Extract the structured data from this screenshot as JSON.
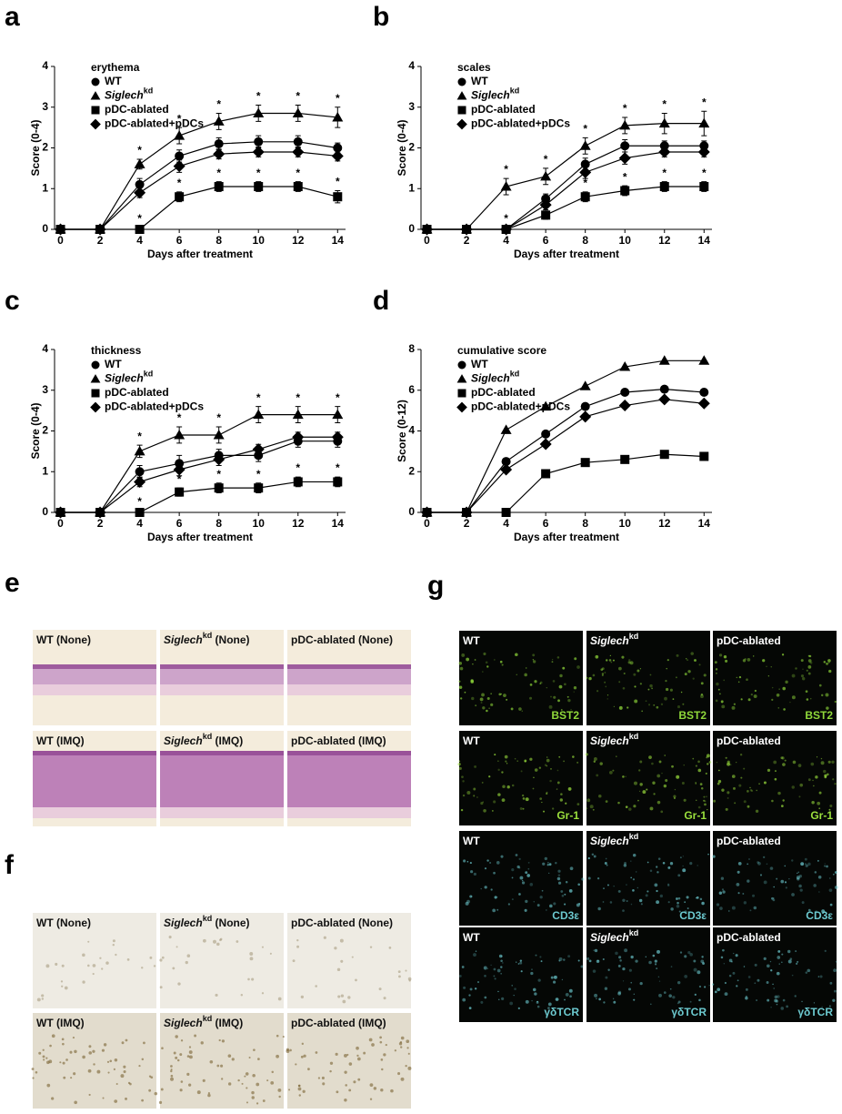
{
  "chart_data": [
    {
      "type": "line",
      "label": "a",
      "title": "erythema",
      "ylabel": "Score (0-4)",
      "xlabel": "Days after treatment",
      "x": [
        0,
        2,
        4,
        6,
        8,
        10,
        12,
        14
      ],
      "xlim": [
        -0.3,
        14.4
      ],
      "xticks": [
        0,
        2,
        4,
        6,
        8,
        10,
        12,
        14
      ],
      "ylim": [
        0,
        4
      ],
      "yticks": [
        0,
        1,
        2,
        3,
        4
      ],
      "series": [
        {
          "name": "WT",
          "marker": "circle",
          "color": "#000000",
          "values": [
            0,
            0,
            1.1,
            1.8,
            2.1,
            2.15,
            2.15,
            2.0
          ],
          "errors": [
            0.05,
            0.05,
            0.15,
            0.15,
            0.15,
            0.15,
            0.15,
            0.12
          ],
          "annotations": [
            null,
            null,
            null,
            null,
            null,
            null,
            null,
            null
          ]
        },
        {
          "name": "Siglech",
          "name_sup": "kd",
          "marker": "triangle",
          "color": "#000000",
          "values": [
            0,
            0,
            1.6,
            2.3,
            2.65,
            2.85,
            2.85,
            2.75
          ],
          "errors": [
            0.05,
            0.05,
            0.12,
            0.2,
            0.2,
            0.2,
            0.2,
            0.25
          ],
          "annotations": [
            null,
            null,
            "*",
            "*",
            "*",
            "*",
            "*",
            "*"
          ]
        },
        {
          "name": "pDC-ablated",
          "marker": "square",
          "color": "#000000",
          "values": [
            0,
            0,
            0,
            0.8,
            1.05,
            1.05,
            1.05,
            0.8
          ],
          "errors": [
            0.05,
            0.05,
            0.05,
            0.12,
            0.12,
            0.12,
            0.12,
            0.15
          ],
          "annotations": [
            null,
            null,
            "*",
            "*",
            "*",
            "*",
            "*",
            "*"
          ]
        },
        {
          "name": "pDC-ablated+pDCs",
          "marker": "diamond",
          "color": "#000000",
          "values": [
            0,
            0,
            0.9,
            1.55,
            1.85,
            1.9,
            1.9,
            1.8
          ],
          "errors": [
            0.05,
            0.05,
            0.12,
            0.15,
            0.12,
            0.12,
            0.12,
            0.12
          ],
          "annotations": [
            null,
            null,
            null,
            null,
            null,
            null,
            null,
            null
          ]
        }
      ]
    },
    {
      "type": "line",
      "label": "b",
      "title": "scales",
      "ylabel": "Score (0-4)",
      "xlabel": "Days after treatment",
      "x": [
        0,
        2,
        4,
        6,
        8,
        10,
        12,
        14
      ],
      "xlim": [
        -0.3,
        14.4
      ],
      "xticks": [
        0,
        2,
        4,
        6,
        8,
        10,
        12,
        14
      ],
      "ylim": [
        0,
        4
      ],
      "yticks": [
        0,
        1,
        2,
        3,
        4
      ],
      "series": [
        {
          "name": "WT",
          "marker": "circle",
          "color": "#000000",
          "values": [
            0,
            0,
            0,
            0.75,
            1.6,
            2.05,
            2.05,
            2.05
          ],
          "errors": [
            0.05,
            0.05,
            0.05,
            0.12,
            0.15,
            0.15,
            0.12,
            0.12
          ],
          "annotations": [
            null,
            null,
            null,
            null,
            null,
            null,
            null,
            null
          ]
        },
        {
          "name": "Siglech",
          "name_sup": "kd",
          "marker": "triangle",
          "color": "#000000",
          "values": [
            0,
            0,
            1.05,
            1.3,
            2.05,
            2.55,
            2.6,
            2.6
          ],
          "errors": [
            0.05,
            0.05,
            0.2,
            0.2,
            0.2,
            0.2,
            0.25,
            0.3
          ],
          "annotations": [
            null,
            null,
            "*",
            "*",
            "*",
            "*",
            "*",
            "*"
          ]
        },
        {
          "name": "pDC-ablated",
          "marker": "square",
          "color": "#000000",
          "values": [
            0,
            0,
            0,
            0.35,
            0.8,
            0.95,
            1.05,
            1.05
          ],
          "errors": [
            0.05,
            0.05,
            0.05,
            0.1,
            0.12,
            0.12,
            0.12,
            0.12
          ],
          "annotations": [
            null,
            null,
            "*",
            null,
            "*",
            "*",
            "*",
            "*"
          ]
        },
        {
          "name": "pDC-ablated+pDCs",
          "marker": "diamond",
          "color": "#000000",
          "values": [
            0,
            0,
            0,
            0.6,
            1.4,
            1.75,
            1.9,
            1.9
          ],
          "errors": [
            0.05,
            0.05,
            0.05,
            0.12,
            0.15,
            0.15,
            0.12,
            0.12
          ],
          "annotations": [
            null,
            null,
            null,
            null,
            null,
            null,
            null,
            null
          ]
        }
      ]
    },
    {
      "type": "line",
      "label": "c",
      "title": "thickness",
      "ylabel": "Score (0-4)",
      "xlabel": "Days after treatment",
      "x": [
        0,
        2,
        4,
        6,
        8,
        10,
        12,
        14
      ],
      "xlim": [
        -0.3,
        14.4
      ],
      "xticks": [
        0,
        2,
        4,
        6,
        8,
        10,
        12,
        14
      ],
      "ylim": [
        0,
        4
      ],
      "yticks": [
        0,
        1,
        2,
        3,
        4
      ],
      "series": [
        {
          "name": "WT",
          "marker": "circle",
          "color": "#000000",
          "values": [
            0,
            0,
            1.0,
            1.2,
            1.4,
            1.4,
            1.75,
            1.75
          ],
          "errors": [
            0.05,
            0.05,
            0.15,
            0.2,
            0.15,
            0.15,
            0.15,
            0.15
          ],
          "annotations": [
            null,
            null,
            null,
            null,
            null,
            null,
            null,
            null
          ]
        },
        {
          "name": "Siglech",
          "name_sup": "kd",
          "marker": "triangle",
          "color": "#000000",
          "values": [
            0,
            0,
            1.5,
            1.9,
            1.9,
            2.4,
            2.4,
            2.4
          ],
          "errors": [
            0.05,
            0.05,
            0.15,
            0.2,
            0.2,
            0.2,
            0.2,
            0.2
          ],
          "annotations": [
            null,
            null,
            "*",
            "*",
            "*",
            "*",
            "*",
            "*"
          ]
        },
        {
          "name": "pDC-ablated",
          "marker": "square",
          "color": "#000000",
          "values": [
            0,
            0,
            0,
            0.5,
            0.6,
            0.6,
            0.75,
            0.75
          ],
          "errors": [
            0.05,
            0.05,
            0.05,
            0.1,
            0.12,
            0.12,
            0.12,
            0.12
          ],
          "annotations": [
            null,
            null,
            "*",
            "*",
            "*",
            "*",
            "*",
            "*"
          ]
        },
        {
          "name": "pDC-ablated+pDCs",
          "marker": "diamond",
          "color": "#000000",
          "values": [
            0,
            0,
            0.75,
            1.05,
            1.3,
            1.55,
            1.85,
            1.85
          ],
          "errors": [
            0.05,
            0.05,
            0.12,
            0.15,
            0.15,
            0.12,
            0.12,
            0.12
          ],
          "annotations": [
            null,
            null,
            null,
            null,
            null,
            null,
            null,
            null
          ]
        }
      ]
    },
    {
      "type": "line",
      "label": "d",
      "title": "cumulative score",
      "ylabel": "Score (0-12)",
      "xlabel": "Days after treatment",
      "x": [
        0,
        2,
        4,
        6,
        8,
        10,
        12,
        14
      ],
      "xlim": [
        -0.3,
        14.4
      ],
      "xticks": [
        0,
        2,
        4,
        6,
        8,
        10,
        12,
        14
      ],
      "ylim": [
        0,
        8
      ],
      "yticks": [
        0,
        2,
        4,
        6,
        8
      ],
      "series": [
        {
          "name": "WT",
          "marker": "circle",
          "color": "#000000",
          "values": [
            0,
            0,
            2.5,
            3.85,
            5.2,
            5.9,
            6.05,
            5.9
          ]
        },
        {
          "name": "Siglech",
          "name_sup": "kd",
          "marker": "triangle",
          "color": "#000000",
          "values": [
            0,
            0,
            4.05,
            5.2,
            6.2,
            7.15,
            7.45,
            7.45
          ]
        },
        {
          "name": "pDC-ablated",
          "marker": "square",
          "color": "#000000",
          "values": [
            0,
            0,
            0,
            1.9,
            2.45,
            2.6,
            2.85,
            2.75
          ]
        },
        {
          "name": "pDC-ablated+pDCs",
          "marker": "diamond",
          "color": "#000000",
          "values": [
            0,
            0,
            2.1,
            3.35,
            4.7,
            5.25,
            5.55,
            5.35
          ]
        }
      ]
    }
  ],
  "image_panels": [
    {
      "label": "e",
      "rows": [
        [
          {
            "text": "WT (None)"
          },
          {
            "gene": "Siglech",
            "sup": "kd",
            "text": " (None)"
          },
          {
            "text": "pDC-ablated (None)"
          }
        ],
        [
          {
            "text": "WT (IMQ)"
          },
          {
            "gene": "Siglech",
            "sup": "kd",
            "text": " (IMQ)"
          },
          {
            "text": "pDC-ablated (IMQ)"
          }
        ]
      ]
    },
    {
      "label": "f",
      "rows": [
        [
          {
            "text": "WT (None)"
          },
          {
            "gene": "Siglech",
            "sup": "kd",
            "text": " (None)"
          },
          {
            "text": "pDC-ablated (None)"
          }
        ],
        [
          {
            "text": "WT (IMQ)"
          },
          {
            "gene": "Siglech",
            "sup": "kd",
            "text": " (IMQ)"
          },
          {
            "text": "pDC-ablated (IMQ)"
          }
        ]
      ]
    },
    {
      "label": "g",
      "rows": [
        [
          {
            "text": "WT",
            "stain": "BST2"
          },
          {
            "gene": "Siglech",
            "sup": "kd",
            "stain": "BST2"
          },
          {
            "text": "pDC-ablated",
            "stain": "BST2"
          }
        ],
        [
          {
            "text": "WT",
            "stain": "Gr-1"
          },
          {
            "gene": "Siglech",
            "sup": "kd",
            "stain": "Gr-1"
          },
          {
            "text": "pDC-ablated",
            "stain": "Gr-1"
          }
        ],
        [
          {
            "text": "WT",
            "stain": "CD3ε"
          },
          {
            "gene": "Siglech",
            "sup": "kd",
            "stain": "CD3ε"
          },
          {
            "text": "pDC-ablated",
            "stain": "CD3ε"
          }
        ],
        [
          {
            "text": "WT",
            "stain": "γδTCR"
          },
          {
            "gene": "Siglech",
            "sup": "kd",
            "stain": "γδTCR"
          },
          {
            "text": "pDC-ablated",
            "stain": "γδTCR"
          }
        ]
      ]
    }
  ]
}
